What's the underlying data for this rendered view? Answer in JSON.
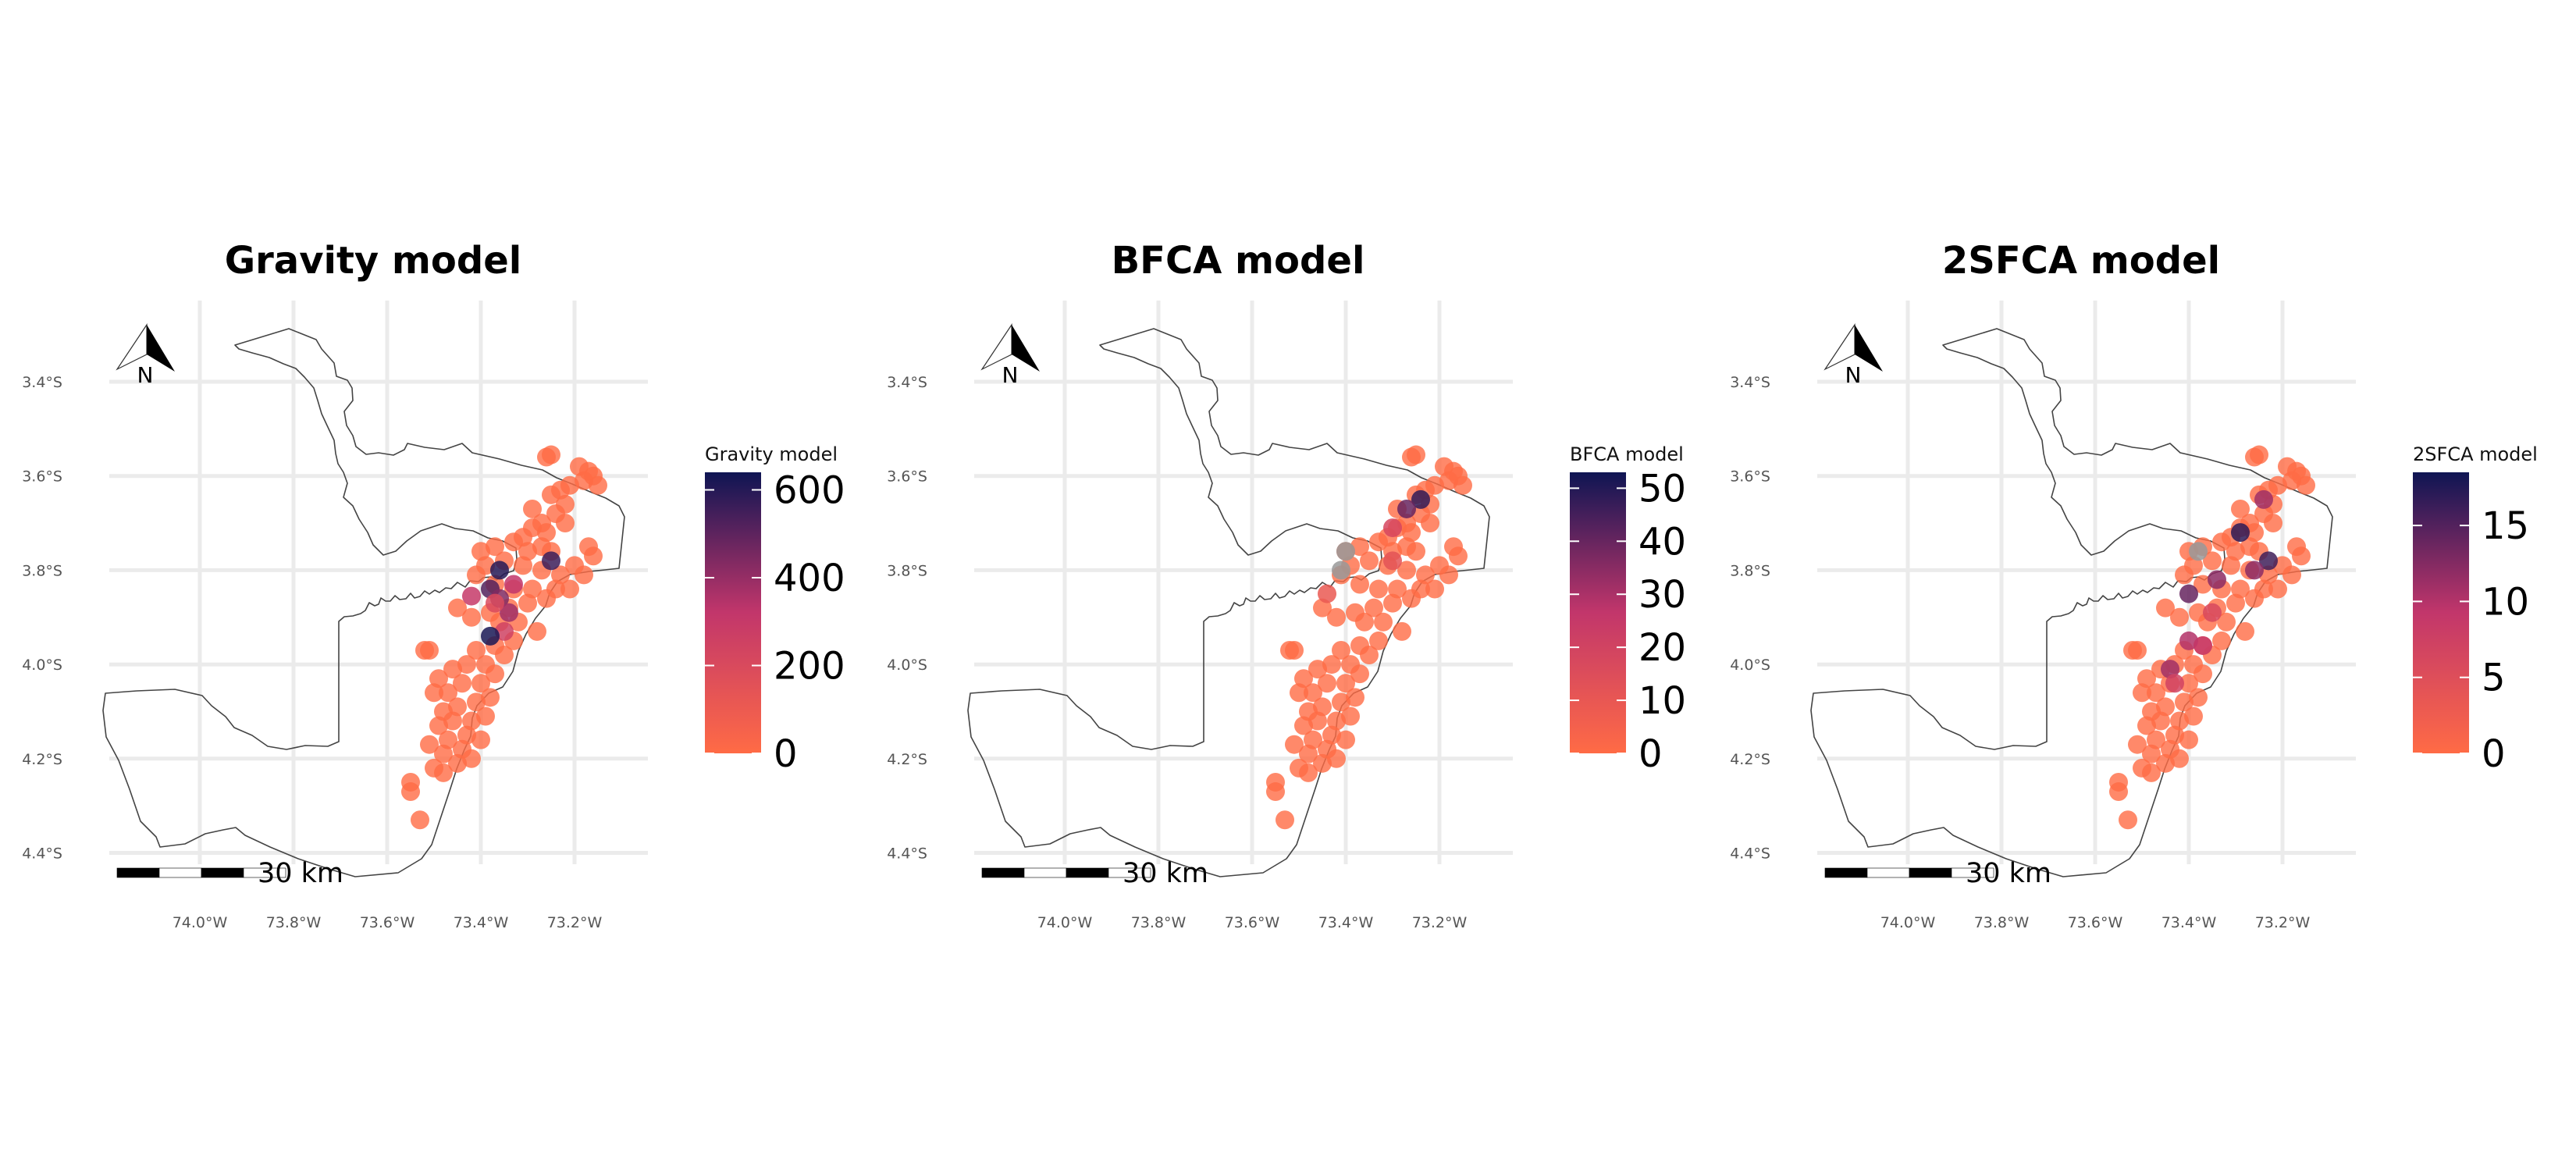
{
  "panels": [
    {
      "title": "Gravity model",
      "legend": {
        "title": "Gravity model",
        "breaks": [
          "0",
          "200",
          "400",
          "600"
        ],
        "min": 0,
        "max": 640
      },
      "hotspots": [
        {
          "lon": -73.36,
          "lat": -3.8,
          "v": 600
        },
        {
          "lon": -73.38,
          "lat": -3.84,
          "v": 520
        },
        {
          "lon": -73.42,
          "lat": -3.855,
          "v": 300
        },
        {
          "lon": -73.36,
          "lat": -3.86,
          "v": 440
        },
        {
          "lon": -73.34,
          "lat": -3.89,
          "v": 380
        },
        {
          "lon": -73.35,
          "lat": -3.93,
          "v": 250
        },
        {
          "lon": -73.38,
          "lat": -3.94,
          "v": 620
        },
        {
          "lon": -73.25,
          "lat": -3.78,
          "v": 560
        },
        {
          "lon": -73.33,
          "lat": -3.83,
          "v": 320
        },
        {
          "lon": -73.37,
          "lat": -3.87,
          "v": 200
        }
      ]
    },
    {
      "title": "BFCA model",
      "legend": {
        "title": "BFCA model",
        "breaks": [
          "0",
          "10",
          "20",
          "30",
          "40",
          "50"
        ],
        "min": 0,
        "max": 53
      },
      "hotspots": [
        {
          "lon": -73.24,
          "lat": -3.65,
          "v": 48
        },
        {
          "lon": -73.27,
          "lat": -3.67,
          "v": 40
        },
        {
          "lon": -73.3,
          "lat": -3.71,
          "v": 18
        },
        {
          "lon": -73.3,
          "lat": -3.78,
          "v": 12
        },
        {
          "lon": -73.4,
          "lat": -3.76,
          "v": -1
        },
        {
          "lon": -73.41,
          "lat": -3.8,
          "v": -1
        },
        {
          "lon": -73.44,
          "lat": -3.85,
          "v": 9
        }
      ]
    },
    {
      "title": "2SFCA model",
      "legend": {
        "title": "2SFCA model",
        "breaks": [
          "0",
          "5",
          "10",
          "15"
        ],
        "min": 0,
        "max": 18.5
      },
      "hotspots": [
        {
          "lon": -73.29,
          "lat": -3.72,
          "v": 17
        },
        {
          "lon": -73.24,
          "lat": -3.65,
          "v": 11
        },
        {
          "lon": -73.23,
          "lat": -3.78,
          "v": 16
        },
        {
          "lon": -73.26,
          "lat": -3.8,
          "v": 12
        },
        {
          "lon": -73.38,
          "lat": -3.76,
          "v": -1
        },
        {
          "lon": -73.34,
          "lat": -3.82,
          "v": 12
        },
        {
          "lon": -73.4,
          "lat": -3.85,
          "v": 14
        },
        {
          "lon": -73.35,
          "lat": -3.89,
          "v": 6
        },
        {
          "lon": -73.4,
          "lat": -3.95,
          "v": 10
        },
        {
          "lon": -73.37,
          "lat": -3.96,
          "v": 9
        },
        {
          "lon": -73.44,
          "lat": -4.01,
          "v": 11
        },
        {
          "lon": -73.43,
          "lat": -4.04,
          "v": 7
        }
      ]
    }
  ],
  "axes": {
    "y_ticks": [
      {
        "lat": -3.4,
        "label": "3.4°S"
      },
      {
        "lat": -3.6,
        "label": "3.6°S"
      },
      {
        "lat": -3.8,
        "label": "3.8°S"
      },
      {
        "lat": -4.0,
        "label": "4.0°S"
      },
      {
        "lat": -4.2,
        "label": "4.2°S"
      },
      {
        "lat": -4.4,
        "label": "4.4°S"
      }
    ],
    "x_ticks": [
      {
        "lon": -74.0,
        "label": "74.0°W"
      },
      {
        "lon": -73.8,
        "label": "73.8°W"
      },
      {
        "lon": -73.6,
        "label": "73.6°W"
      },
      {
        "lon": -73.4,
        "label": "73.4°W"
      },
      {
        "lon": -73.2,
        "label": "73.2°W"
      }
    ]
  },
  "north_arrow_label": "N",
  "scale_bar_label": "30 km",
  "colors": {
    "low": "#FF6B45",
    "mid": "#C2366B",
    "high": "#0E1553",
    "missing": "#999999",
    "outline": "#444444",
    "grid": "#EBEBEB"
  }
}
